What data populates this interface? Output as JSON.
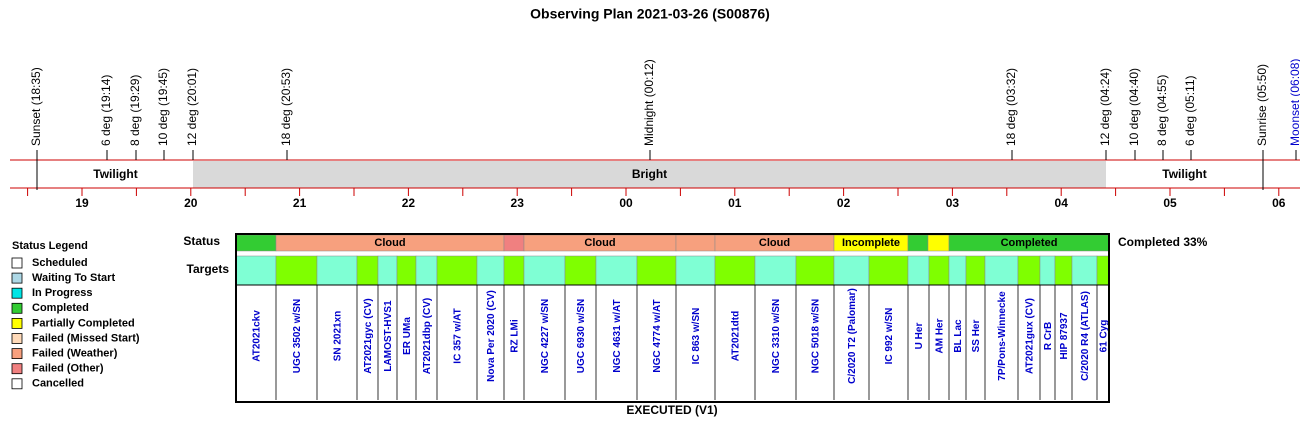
{
  "title": "Observing Plan 2021-03-26 (S00876)",
  "events": [
    "Sunset (18:35)",
    "6 deg (19:14)",
    "8 deg (19:29)",
    "10 deg (19:45)",
    "12 deg (20:01)",
    "18 deg (20:53)",
    "Midnight (00:12)",
    "18 deg (03:32)",
    "12 deg (04:24)",
    "10 deg (04:40)",
    "8 deg (04:55)",
    "6 deg (05:11)",
    "Sunrise (05:50)",
    "Moonset (06:08)"
  ],
  "bands": [
    "Twilight",
    "Bright",
    "Twilight"
  ],
  "hours": [
    "19",
    "20",
    "21",
    "22",
    "23",
    "00",
    "01",
    "02",
    "03",
    "04",
    "05",
    "06"
  ],
  "legend": {
    "title": "Status Legend",
    "items": [
      "Scheduled",
      "Waiting To Start",
      "In Progress",
      "Completed",
      "Partially Completed",
      "Failed (Missed Start)",
      "Failed (Weather)",
      "Failed (Other)",
      "Cancelled"
    ]
  },
  "status": {
    "label": "Status",
    "segments": [
      "Cloud",
      "Cloud",
      "Cloud",
      "Incomplete",
      "Completed"
    ],
    "summary": "Completed 33%"
  },
  "targets": {
    "label": "Targets",
    "names": [
      "AT2021ckv",
      "UGC 3502 w/SN",
      "SN 2021xn",
      "AT2021gyc (CV)",
      "LAMOST-HVS1",
      "ER UMa",
      "AT2021dbp (CV)",
      "IC 357 w/AT",
      "Nova Per 2020 (CV)",
      "RZ LMi",
      "NGC 4227 w/SN",
      "UGC 6930 w/SN",
      "NGC 4631 w/AT",
      "NGC 4774 w/AT",
      "IC 863 w/SN",
      "AT2021dtd",
      "NGC 3310 w/SN",
      "NGC 5018 w/SN",
      "C/2020 T2 (Palomar)",
      "IC 992 w/SN",
      "U Her",
      "AM Her",
      "BL Lac",
      "SS Her",
      "7P/Pons-Winnecke",
      "AT2021gux (CV)",
      "R CrB",
      "HIP 87937",
      "C/2020 R4 (ATLAS)",
      "61 Cyg"
    ]
  },
  "footer": "EXECUTED (V1)"
}
